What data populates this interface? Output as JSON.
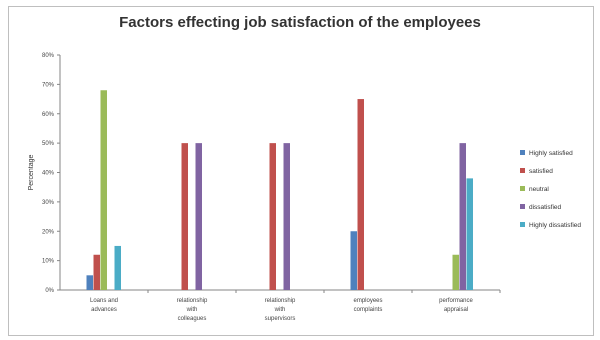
{
  "chart_data": {
    "type": "bar",
    "title": "Factors effecting job satisfaction of the employees",
    "xlabel": "",
    "ylabel": "Percentage",
    "ylim": [
      0,
      80
    ],
    "y_ticks": [
      "0%",
      "10%",
      "20%",
      "30%",
      "40%",
      "50%",
      "60%",
      "70%",
      "80%"
    ],
    "grid": false,
    "legend_position": "right",
    "categories": [
      [
        "Loans and",
        "advances"
      ],
      [
        "relationship",
        "with",
        "colleagues"
      ],
      [
        "relationship",
        "with",
        "supervisors"
      ],
      [
        "employees",
        "complaints"
      ],
      [
        "performance",
        "appraisal"
      ]
    ],
    "series": [
      {
        "name": "Highly satisfied",
        "color": "#4f81bd",
        "values": [
          5,
          0,
          0,
          20,
          0
        ]
      },
      {
        "name": "satisfied",
        "color": "#c0504d",
        "values": [
          12,
          50,
          50,
          65,
          0
        ]
      },
      {
        "name": "neutral",
        "color": "#9bbb59",
        "values": [
          68,
          0,
          0,
          0,
          12
        ]
      },
      {
        "name": "dissatisfied",
        "color": "#8064a2",
        "values": [
          0,
          50,
          50,
          0,
          50
        ]
      },
      {
        "name": "Highly dissatisfied",
        "color": "#4bacc6",
        "values": [
          15,
          0,
          0,
          0,
          38
        ]
      }
    ]
  }
}
